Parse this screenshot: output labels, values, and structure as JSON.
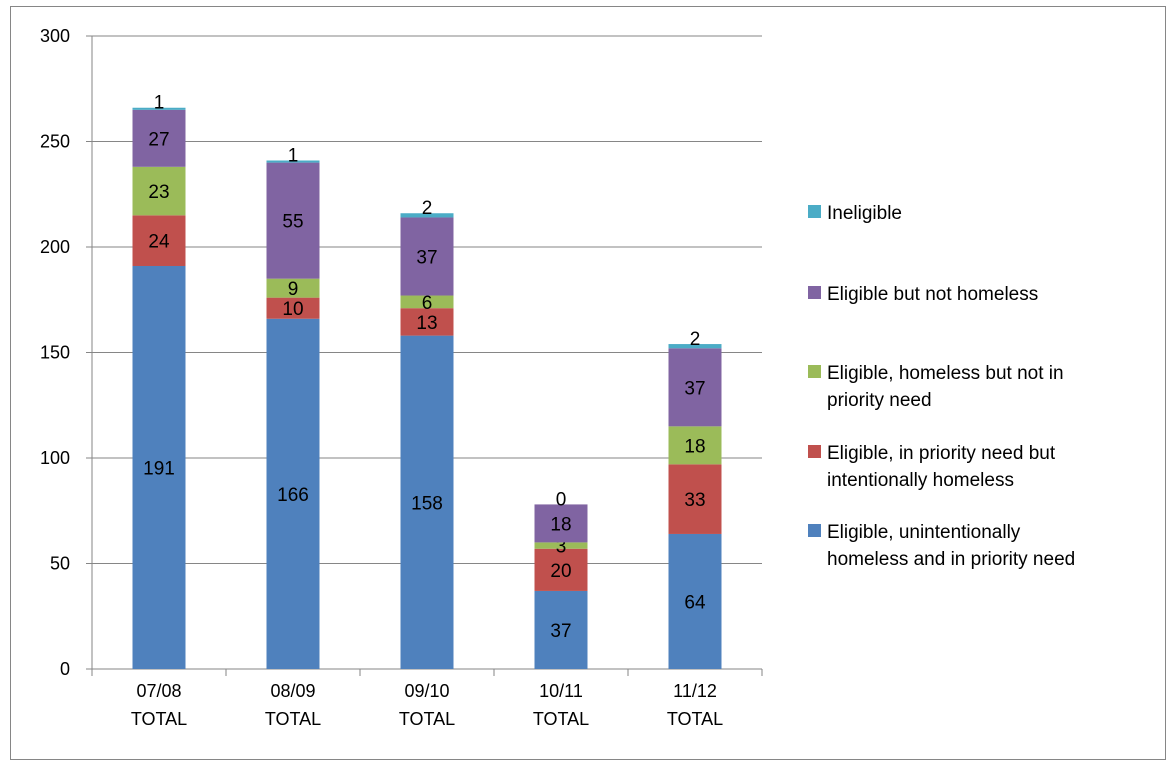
{
  "chart_data": {
    "type": "bar",
    "stacked": true,
    "title": "",
    "xlabel": "",
    "ylabel": "",
    "ylim": [
      0,
      300
    ],
    "yticks": [
      0,
      50,
      100,
      150,
      200,
      250,
      300
    ],
    "grid": true,
    "legend_position": "right",
    "categories": [
      [
        "07/08",
        "TOTAL"
      ],
      [
        "08/09",
        "TOTAL"
      ],
      [
        "09/10",
        "TOTAL"
      ],
      [
        "10/11",
        "TOTAL"
      ],
      [
        "11/12",
        "TOTAL"
      ]
    ],
    "series": [
      {
        "name": "Eligible, unintentionally homeless and in priority need",
        "legend_lines": [
          "Eligible, unintentionally",
          "homeless and in priority need"
        ],
        "color": "#4f81bd",
        "values": [
          191,
          166,
          158,
          37,
          64
        ]
      },
      {
        "name": "Eligible, in priority need but intentionally homeless",
        "legend_lines": [
          "Eligible, in priority need but",
          "intentionally homeless"
        ],
        "color": "#c0504d",
        "values": [
          24,
          10,
          13,
          20,
          33
        ]
      },
      {
        "name": "Eligible, homeless but not in priority need",
        "legend_lines": [
          "Eligible, homeless but not in",
          "priority need"
        ],
        "color": "#9bbb59",
        "values": [
          23,
          9,
          6,
          3,
          18
        ]
      },
      {
        "name": "Eligible but not homeless",
        "legend_lines": [
          "Eligible but not homeless"
        ],
        "color": "#8064a2",
        "values": [
          27,
          55,
          37,
          18,
          37
        ]
      },
      {
        "name": "Ineligible",
        "legend_lines": [
          "Ineligible"
        ],
        "color": "#4bacc6",
        "values": [
          1,
          1,
          2,
          0,
          2
        ]
      }
    ]
  }
}
